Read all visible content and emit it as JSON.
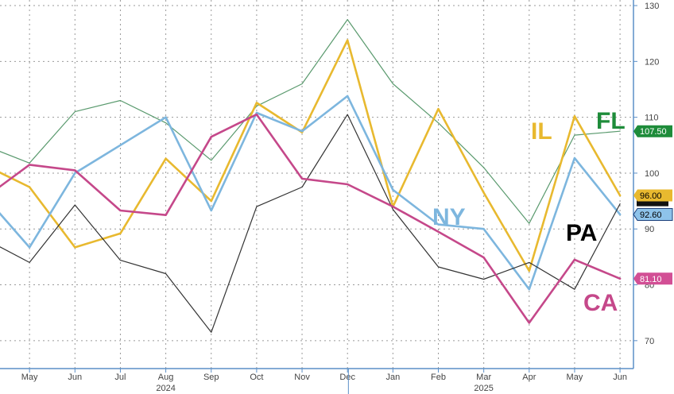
{
  "chart_data": {
    "type": "line",
    "categories": [
      "Apr",
      "May",
      "Jun",
      "Jul",
      "Aug",
      "Sep",
      "Oct",
      "Nov",
      "Dec",
      "Jan",
      "Feb",
      "Mar",
      "Apr",
      "May",
      "Jun"
    ],
    "x_tick_labels": [
      "May",
      "Jun",
      "Jul",
      "Aug",
      "Sep",
      "Oct",
      "Nov",
      "Dec",
      "Jan",
      "Feb",
      "Mar",
      "Apr",
      "May",
      "Jun"
    ],
    "year_labels": [
      {
        "label": "2024",
        "at": "Aug"
      },
      {
        "label": "2025",
        "at": "Mar"
      }
    ],
    "ylim": [
      65,
      131
    ],
    "y_ticks": [
      70,
      80,
      90,
      100,
      110,
      120,
      130
    ],
    "grid": true,
    "series": [
      {
        "name": "FL",
        "color": "#5a9a6e",
        "width": 1.2,
        "values": [
          105,
          101.8,
          111,
          113,
          109,
          102.3,
          112,
          116,
          127.5,
          116,
          109,
          101,
          91,
          106.8,
          107.5
        ],
        "last_tag": "107.50",
        "tag_color": "#1e8c3a",
        "tag_text_color": "#ffffff"
      },
      {
        "name": "IL",
        "color": "#e8b92f",
        "width": 2.6,
        "values": [
          101.5,
          97.5,
          86.7,
          89.2,
          102.6,
          95,
          112.6,
          107.3,
          123.8,
          94,
          111.5,
          96.5,
          82.5,
          110.2,
          96
        ],
        "last_tag": "96.00",
        "tag_color": "#e8b92f",
        "tag_text_color": "#000000"
      },
      {
        "name": "NY",
        "color": "#7db6de",
        "width": 2.6,
        "values": [
          96,
          86.7,
          100,
          105,
          110,
          93.3,
          110.8,
          107.5,
          113.8,
          97,
          90.8,
          90,
          79.2,
          102.7,
          92.6
        ],
        "last_tag": "92.60",
        "tag_color": "#8ec3ea",
        "tag_text_color": "#000000"
      },
      {
        "name": "PA",
        "color": "#333333",
        "width": 1.2,
        "values": [
          88.3,
          84,
          94.3,
          84.4,
          82,
          71.5,
          94,
          97.5,
          110.5,
          93.5,
          83.2,
          81,
          84,
          79.2,
          94.5
        ],
        "last_tag": "",
        "tag_color": "#000000",
        "tag_text_color": "#ffffff"
      },
      {
        "name": "CA",
        "color": "#c5488a",
        "width": 2.6,
        "values": [
          95.5,
          101.5,
          100.5,
          93.3,
          92.5,
          106.5,
          110.5,
          99,
          98,
          94,
          89.5,
          84.9,
          73.2,
          84.5,
          81.1
        ],
        "last_tag": "81.10",
        "tag_color": "#d24f95",
        "tag_text_color": "#ffffff"
      }
    ],
    "annotations": [
      {
        "text": "FL",
        "series": "FL",
        "color": "#1e8c3a"
      },
      {
        "text": "IL",
        "series": "IL",
        "color": "#e8b92f"
      },
      {
        "text": "NY",
        "series": "NY",
        "color": "#7db6de"
      },
      {
        "text": "PA",
        "series": "PA",
        "color": "#000000"
      },
      {
        "text": "CA",
        "series": "CA",
        "color": "#c5488a"
      }
    ]
  }
}
